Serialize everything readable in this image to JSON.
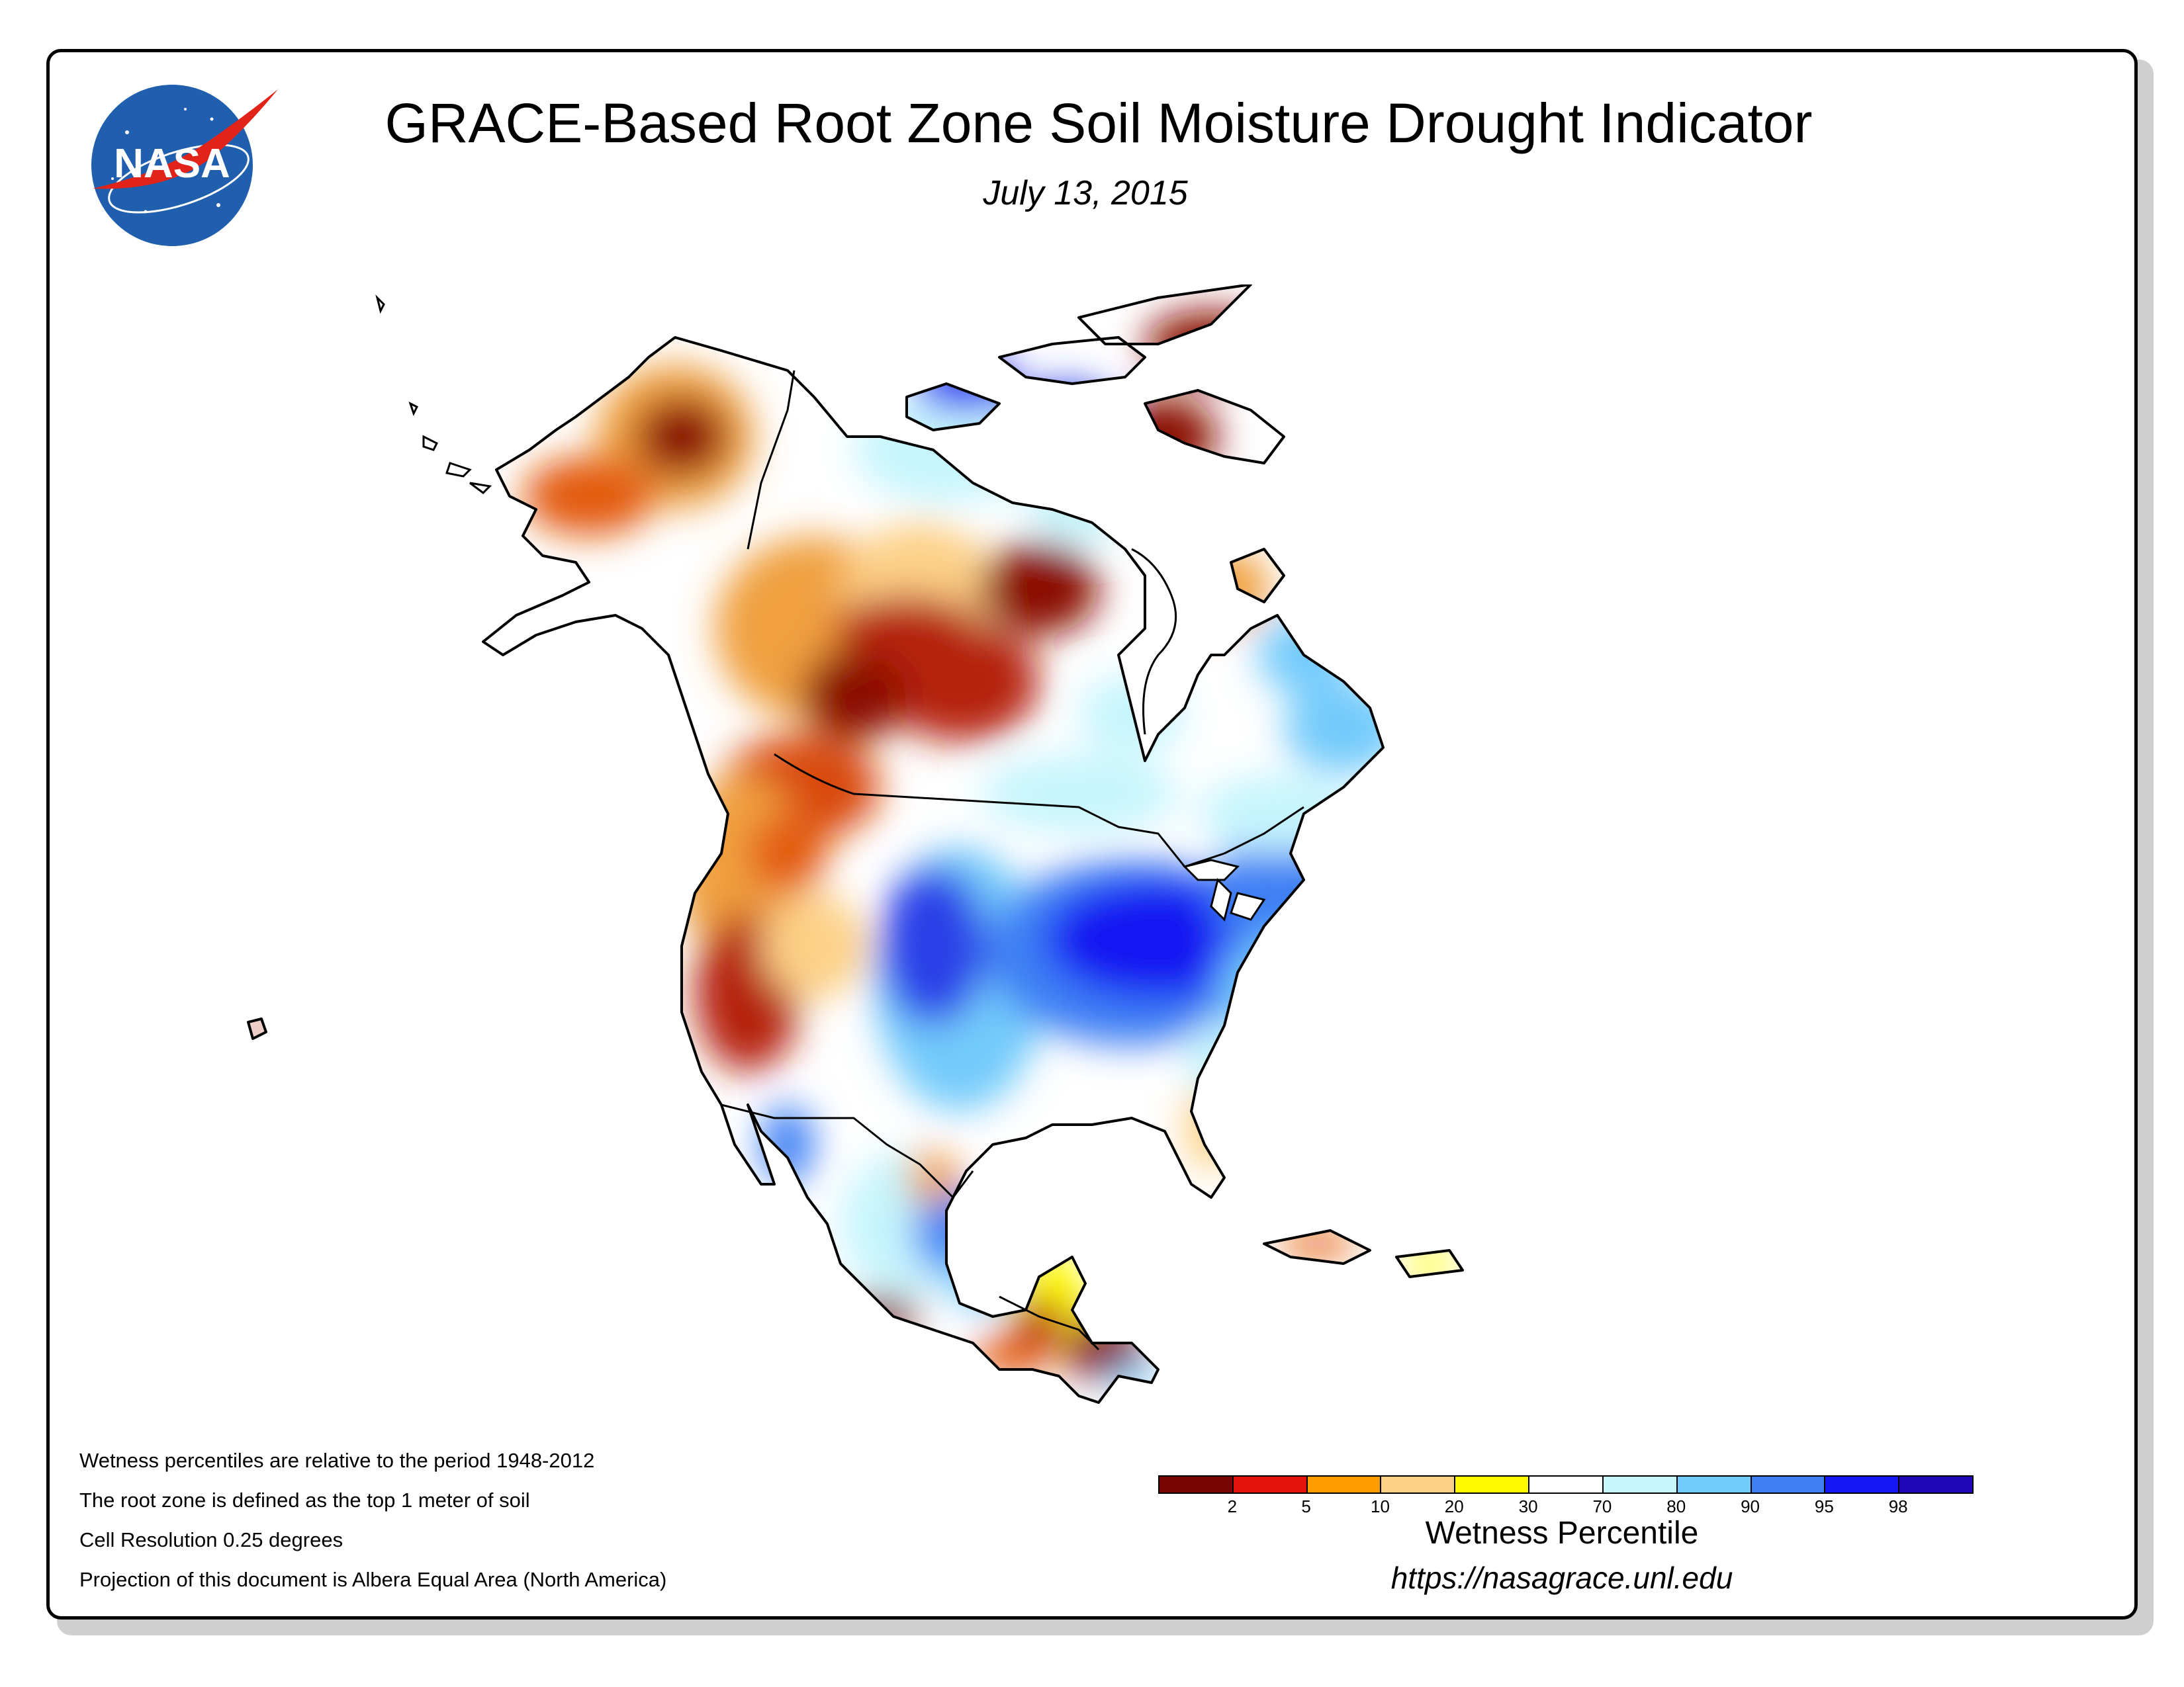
{
  "header": {
    "title": "GRACE-Based Root Zone Soil Moisture Drought Indicator",
    "date": "July 13, 2015"
  },
  "logo": {
    "text": "NASA",
    "colors": {
      "disk": "#1f5fae",
      "swoosh": "#e2231a",
      "text": "#ffffff"
    }
  },
  "notes": [
    "Wetness percentiles are relative to the period 1948-2012",
    "The root zone is defined as the top 1 meter of soil",
    "Cell Resolution 0.25 degrees",
    "Projection of this document is Albera Equal Area (North America)"
  ],
  "legend": {
    "title": "Wetness Percentile",
    "url": "https://nasagrace.unl.edu",
    "tick_labels": [
      "2",
      "5",
      "10",
      "20",
      "30",
      "70",
      "80",
      "90",
      "95",
      "98"
    ],
    "colors": [
      "#7a0403",
      "#e3120b",
      "#ff9e00",
      "#fdd086",
      "#fffa00",
      "#ffffff",
      "#c6f5fd",
      "#73cbfb",
      "#3e7ff4",
      "#1518f2",
      "#2106b9"
    ]
  },
  "map": {
    "region": "North America",
    "colors": {
      "land_neutral": "#ffffff",
      "border": "#000000"
    }
  }
}
